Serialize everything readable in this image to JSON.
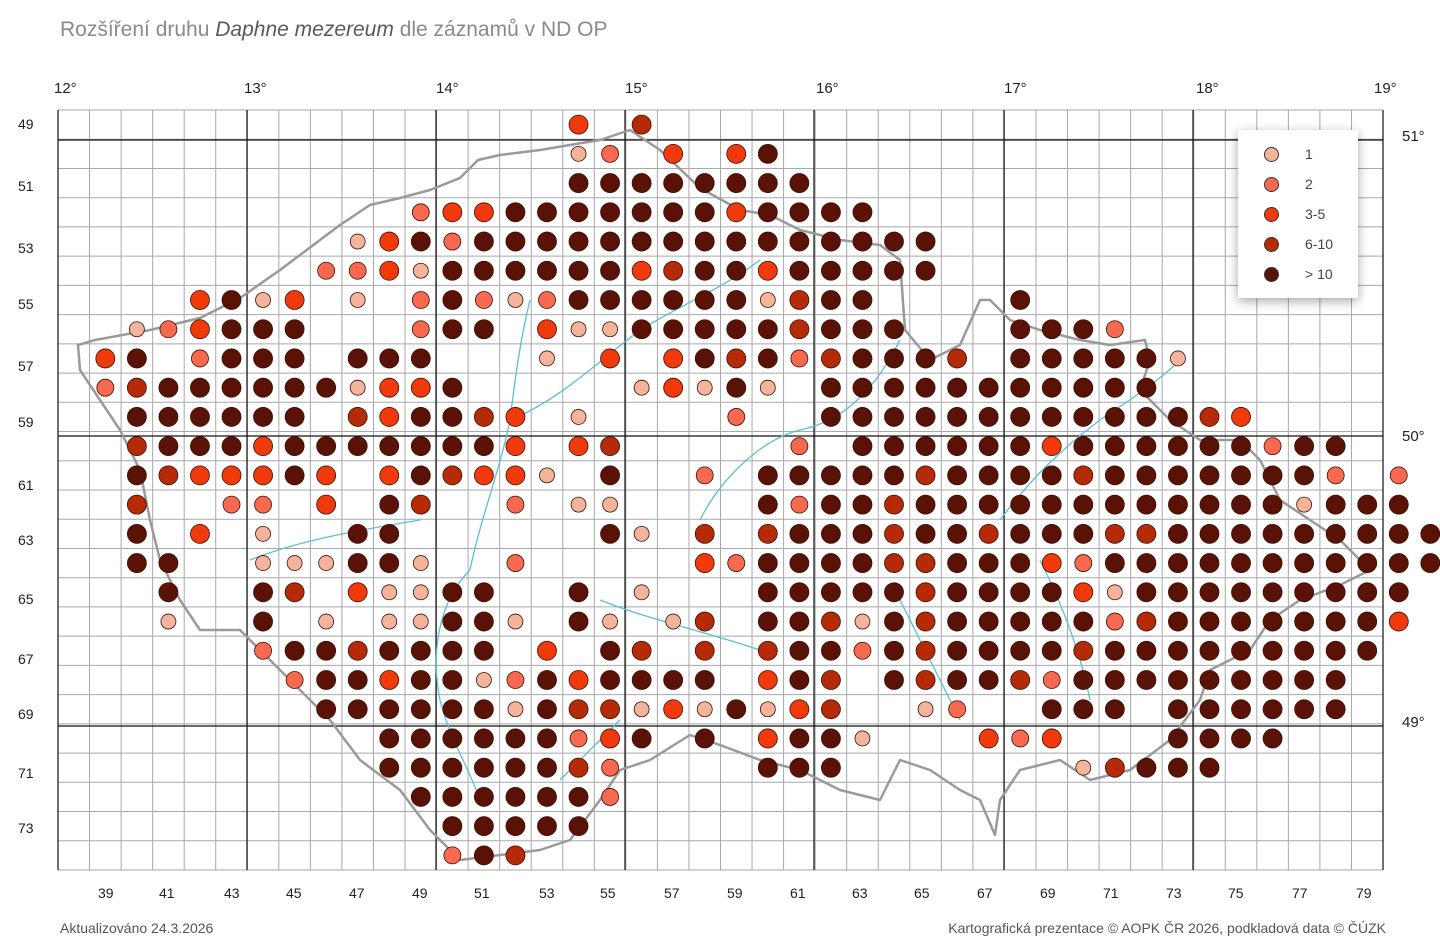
{
  "title": {
    "prefix": "Rozšíření druhu",
    "species": "Daphne mezereum",
    "suffix": "dle záznamů v ND OP"
  },
  "longitude_labels": [
    "12°",
    "13°",
    "14°",
    "15°",
    "16°",
    "17°",
    "18°",
    "19°"
  ],
  "latitude_labels": [
    "51°",
    "50°",
    "49°"
  ],
  "row_labels": [
    "49",
    "51",
    "53",
    "55",
    "57",
    "59",
    "61",
    "63",
    "65",
    "67",
    "69",
    "71",
    "73"
  ],
  "column_labels": [
    "39",
    "41",
    "43",
    "45",
    "47",
    "49",
    "51",
    "53",
    "55",
    "57",
    "59",
    "61",
    "63",
    "65",
    "67",
    "69",
    "71",
    "73",
    "75",
    "77",
    "79"
  ],
  "legend": {
    "items": [
      {
        "label": "1",
        "color": "#f4b49c"
      },
      {
        "label": "2",
        "color": "#f86a4f"
      },
      {
        "label": "3-5",
        "color": "#f03a0c"
      },
      {
        "label": "6-10",
        "color": "#b52b08"
      },
      {
        "label": "> 10",
        "color": "#5a1206"
      }
    ]
  },
  "footer": {
    "updated": "Aktualizováno 24.3.2026",
    "credits": "Kartografická prezentace © AOPK ČR 2026, podkladová data © ČÚZK"
  },
  "grid": {
    "first_column": 38,
    "first_row": 48,
    "columns": 42,
    "rows": 26
  },
  "records": {
    "48": "16:3,18:4",
    "49": "16:1,17:2,19:3,21:3,22:5",
    "50": "16:5,17:5,18:5,19:5,20:5,21:5,22:5,23:5",
    "51": "11:2,12:3,13:3,14:5,15:5,16:5,17:5,18:5,19:5,20:5,21:3,22:5,23:5,24:5,25:5",
    "52": "9:1,10:3,11:5,12:2,13:5,14:5,15:5,16:5,17:5,18:5,19:5,20:5,21:5,22:5,23:5,24:5,25:5,26:5,27:5",
    "53": "8:2,9:2,10:3,11:1,12:5,13:5,14:5,15:5,16:5,17:5,18:3,19:4,20:5,21:5,22:3,23:5,24:5,25:5,26:5,27:5",
    "54": "4:3,5:5,6:1,7:3,9:1,11:2,12:5,13:2,14:1,15:2,16:5,17:5,18:5,19:5,20:5,21:5,22:1,23:4,24:5,25:5,30:5",
    "55": "2:1,3:2,4:3,5:5,6:5,7:5,11:2,12:5,13:5,15:3,16:1,17:1,18:5,19:5,20:5,21:5,22:5,23:4,24:5,25:5,26:5,30:5,31:5,32:5,33:2",
    "56": "1:3,2:5,4:2,5:5,6:5,7:5,9:5,10:5,11:5,15:1,17:3,19:3,20:5,21:4,22:5,23:2,24:4,25:5,26:5,27:5,28:4,30:5,31:5,32:5,33:5,34:5,35:1",
    "57": "1:2,2:4,3:5,4:5,5:5,6:5,7:5,8:5,9:1,10:3,11:3,12:5,18:1,19:3,20:1,21:5,22:1,24:5,25:5,26:5,27:5,28:5,29:5,30:5,31:5,32:5,33:5,34:5",
    "58": "2:5,3:5,4:5,5:5,6:5,7:5,9:4,10:3,11:5,12:5,13:4,14:3,16:1,21:2,24:5,25:5,26:5,27:5,28:5,29:5,30:5,31:5,32:5,33:5,34:5,35:5,36:4,37:3",
    "59": "2:4,3:5,4:5,5:5,6:3,7:5,8:5,9:5,10:5,11:5,12:5,13:5,14:3,16:3,17:4,23:2,25:5,26:5,27:5,28:5,29:5,30:5,31:3,32:5,33:5,34:5,35:5,36:5,37:5,38:2,39:5,40:5",
    "60": "2:5,3:4,4:3,5:3,6:3,7:5,8:3,10:3,11:5,12:4,13:3,14:3,15:1,17:5,20:2,22:5,23:5,24:5,25:5,26:5,27:4,28:5,29:5,30:5,31:5,32:4,33:5,34:5,35:5,36:5,37:5,38:5,39:5,40:2,42:2",
    "61": "2:4,5:2,6:2,8:3,10:5,11:4,14:2,16:1,17:1,22:5,23:2,24:5,25:5,26:4,27:5,28:5,29:5,30:5,31:5,32:5,33:5,34:5,35:5,36:5,37:5,38:5,39:1,40:5,41:5,42:5",
    "62": "2:5,4:3,6:1,9:5,10:5,17:5,18:1,20:4,22:4,23:5,24:5,25:5,26:4,27:5,28:5,29:4,30:5,31:5,32:5,33:4,34:4,35:5,36:5,37:5,38:5,39:5,40:5,41:5,42:5,43:5",
    "63": "2:5,3:5,6:1,7:1,8:1,9:5,10:5,11:1,14:2,20:3,21:2,22:5,23:5,24:5,25:5,26:4,27:4,28:5,29:5,30:5,31:3,32:2,33:5,34:5,35:5,36:5,37:5,38:5,39:5,40:5,41:5,42:5,43:5,44:5,45:1",
    "64": "3:5,6:5,7:4,9:3,10:1,11:1,12:5,13:5,16:5,18:1,22:5,23:5,24:5,25:5,26:5,27:4,28:5,29:5,30:5,31:5,32:3,33:1,34:5,35:5,36:5,37:5,38:5,39:5,40:5,41:5,42:5",
    "65": "3:1,6:5,8:1,10:1,11:1,12:5,13:5,14:1,16:5,17:1,19:1,20:4,22:5,23:5,24:4,25:1,26:5,27:4,28:5,29:5,30:5,31:5,32:5,33:2,34:4,35:5,36:5,37:5,38:5,39:5,40:5,41:5,42:3",
    "66": "6:2,7:5,8:5,9:4,10:5,11:5,12:5,13:5,15:3,17:5,18:4,20:4,22:4,23:5,24:5,25:2,26:5,27:4,28:5,29:5,30:5,31:5,32:4,33:5,34:5,35:5,36:5,37:5,38:5,39:5,40:5,41:5",
    "67": "7:2,8:5,9:5,10:3,11:5,12:5,13:1,14:2,15:5,16:3,17:5,18:5,19:5,20:5,22:3,23:5,24:4,26:5,27:4,28:5,29:5,30:4,31:2,32:5,33:5,34:5,35:5,36:5,37:5,38:5,39:5,40:5",
    "68": "8:5,9:5,10:5,11:5,12:5,13:5,14:1,15:5,16:4,17:4,18:1,19:3,20:1,21:5,22:1,23:3,24:4,27:1,28:2,31:5,32:5,33:5,35:5,36:5,37:5,38:5,39:5,40:5",
    "69": "10:5,11:5,12:5,13:5,14:5,15:5,16:2,17:3,18:5,20:5,22:3,23:5,24:5,25:1,29:3,30:2,31:3,35:5,36:5,37:5,38:5",
    "70": "10:5,11:5,12:5,13:5,14:5,15:5,16:4,17:2,22:5,23:5,24:5,32:1,33:4,34:5,35:5,36:5",
    "71": "11:5,12:5,13:5,14:5,15:5,16:5,17:2",
    "72": "12:5,13:5,14:5,15:5,16:5",
    "73": "12:2,13:5,14:4"
  }
}
